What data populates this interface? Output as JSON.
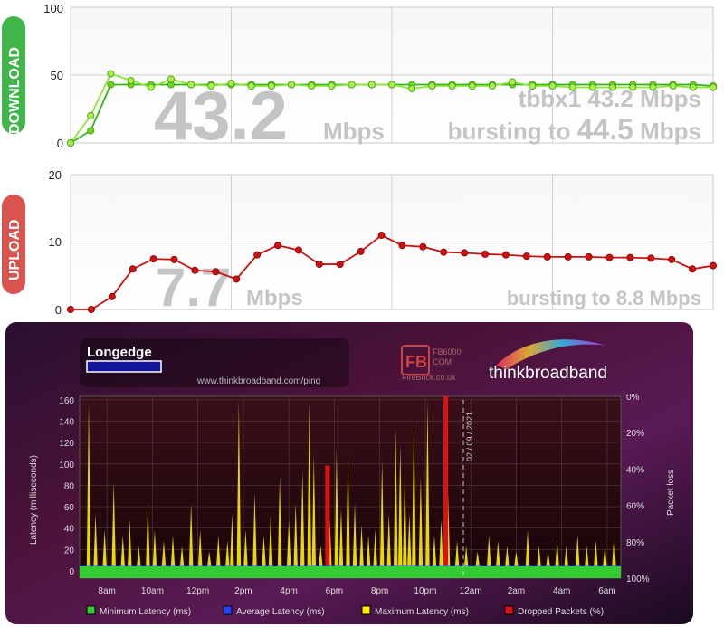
{
  "chart_data": [
    {
      "type": "line",
      "panel_label": "DOWNLOAD",
      "ylim": [
        0,
        100
      ],
      "yticks": [
        "0",
        "50",
        "100"
      ],
      "headline_value": "43.2",
      "headline_unit": "Mbps",
      "summary_line1": "tbbx1 43.2 Mbps",
      "summary_line2_prefix": "bursting to",
      "summary_line2_value": "44.5",
      "summary_line2_unit": "Mbps",
      "line_color": "#6fd61c",
      "series": [
        {
          "values": [
            0,
            9,
            43,
            43,
            43,
            43,
            43,
            43,
            43,
            43,
            43,
            43,
            43,
            43,
            43,
            43,
            43,
            43,
            43,
            43,
            43,
            43,
            43,
            43,
            43,
            43,
            43,
            43,
            43,
            43,
            43,
            43,
            42
          ]
        },
        {
          "values": [
            0,
            20,
            51,
            46,
            41,
            47,
            43,
            42,
            44,
            42,
            42,
            43,
            42,
            42,
            43,
            43,
            43,
            40,
            42,
            42,
            42,
            42,
            45,
            42,
            42,
            41,
            41,
            41,
            41,
            41,
            42,
            41,
            41
          ]
        }
      ]
    },
    {
      "type": "line",
      "panel_label": "UPLOAD",
      "ylim": [
        0,
        20
      ],
      "yticks": [
        "0",
        "10",
        "20"
      ],
      "headline_value": "7.7",
      "headline_unit": "Mbps",
      "summary_line2_prefix": "bursting to",
      "summary_line2_value": "8.8",
      "summary_line2_unit": "Mbps",
      "line_color": "#cc1111",
      "values": [
        0,
        0,
        1.9,
        6,
        7.5,
        7.4,
        5.8,
        5.6,
        4.5,
        8.1,
        9.5,
        8.8,
        6.7,
        6.7,
        8.6,
        11,
        9.5,
        9.3,
        8.5,
        8.4,
        8.2,
        8.1,
        7.9,
        7.8,
        7.8,
        7.8,
        7.7,
        7.7,
        7.6,
        7.4,
        6,
        6.5
      ]
    },
    {
      "type": "area",
      "title": "Longedge",
      "url": "www.thinkbroadband.com/ping",
      "brand": "thinkbroadband",
      "badge_text": "FB",
      "badge_line1": "FB6000",
      "badge_line2": "COM",
      "badge_line3": "FireBrick.co.uk",
      "date_marker": "02 / 09 / 2021",
      "ylabel": "Latency (milliseconds)",
      "y2label": "Packet loss",
      "ylim": [
        0,
        160
      ],
      "yticks": [
        "0",
        "20",
        "40",
        "60",
        "80",
        "100",
        "120",
        "140",
        "160"
      ],
      "y2ticks": [
        "0%",
        "20%",
        "40%",
        "60%",
        "80%",
        "100%"
      ],
      "xticks": [
        "8am",
        "10am",
        "12pm",
        "2pm",
        "4pm",
        "6pm",
        "8pm",
        "10pm",
        "12am",
        "2am",
        "4am",
        "6am"
      ],
      "min_latency_ms": 11,
      "avg_latency_ms": 12,
      "spikes": [
        [
          7.2,
          165
        ],
        [
          7.5,
          60
        ],
        [
          7.9,
          45
        ],
        [
          8.3,
          90
        ],
        [
          8.7,
          40
        ],
        [
          9.0,
          55
        ],
        [
          9.4,
          30
        ],
        [
          9.8,
          70
        ],
        [
          10.1,
          45
        ],
        [
          10.5,
          35
        ],
        [
          10.9,
          40
        ],
        [
          11.3,
          30
        ],
        [
          11.7,
          70
        ],
        [
          12.1,
          45
        ],
        [
          12.5,
          25
        ],
        [
          12.9,
          40
        ],
        [
          13.3,
          35
        ],
        [
          13.5,
          60
        ],
        [
          13.8,
          165
        ],
        [
          14.1,
          45
        ],
        [
          14.5,
          80
        ],
        [
          14.9,
          40
        ],
        [
          15.2,
          60
        ],
        [
          15.6,
          95
        ],
        [
          16.0,
          55
        ],
        [
          16.3,
          70
        ],
        [
          16.6,
          100
        ],
        [
          16.9,
          165
        ],
        [
          17.1,
          115
        ],
        [
          17.4,
          30
        ],
        [
          17.8,
          55
        ],
        [
          18.1,
          120
        ],
        [
          18.3,
          65
        ],
        [
          18.6,
          115
        ],
        [
          18.9,
          70
        ],
        [
          19.2,
          50
        ],
        [
          19.5,
          40
        ],
        [
          19.8,
          45
        ],
        [
          20.1,
          110
        ],
        [
          20.4,
          60
        ],
        [
          20.7,
          140
        ],
        [
          20.9,
          125
        ],
        [
          21.1,
          100
        ],
        [
          21.3,
          60
        ],
        [
          21.5,
          150
        ],
        [
          21.8,
          95
        ],
        [
          22.1,
          165
        ],
        [
          22.4,
          40
        ],
        [
          22.7,
          55
        ],
        [
          23.0,
          80
        ],
        [
          23.4,
          35
        ],
        [
          23.8,
          30
        ],
        [
          24.3,
          25
        ],
        [
          24.8,
          40
        ],
        [
          25.2,
          35
        ],
        [
          25.6,
          30
        ],
        [
          26.0,
          25
        ],
        [
          26.5,
          45
        ],
        [
          27.0,
          30
        ],
        [
          27.4,
          25
        ],
        [
          27.8,
          35
        ],
        [
          28.2,
          30
        ],
        [
          28.7,
          40
        ],
        [
          29.1,
          30
        ],
        [
          29.5,
          35
        ],
        [
          29.9,
          30
        ],
        [
          30.3,
          40
        ]
      ],
      "dropped_packets": [
        [
          17.7,
          0.62
        ],
        [
          22.9,
          1.0
        ]
      ],
      "legend": [
        {
          "label": "Minimum Latency (ms)",
          "color": "#33cc33"
        },
        {
          "label": "Average Latency (ms)",
          "color": "#2244ff"
        },
        {
          "label": "Maximum Latency (ms)",
          "color": "#ffee00"
        },
        {
          "label": "Dropped Packets (%)",
          "color": "#dd1111"
        }
      ]
    }
  ]
}
